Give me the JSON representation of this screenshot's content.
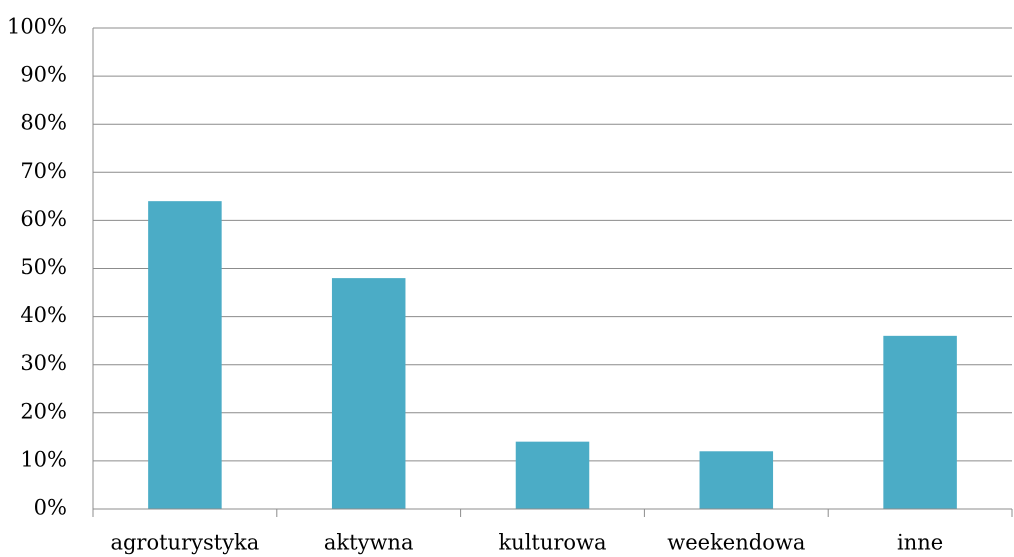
{
  "chart_data": {
    "type": "bar",
    "categories": [
      "agroturystyka",
      "aktywna",
      "kulturowa",
      "weekendowa",
      "inne"
    ],
    "values": [
      64,
      48,
      14,
      12,
      36
    ],
    "color": "#4bacc6",
    "ylim": [
      0,
      100
    ],
    "yticks": [
      {
        "value": 0,
        "label": "0%"
      },
      {
        "value": 10,
        "label": "10%"
      },
      {
        "value": 20,
        "label": "20%"
      },
      {
        "value": 30,
        "label": "30%"
      },
      {
        "value": 40,
        "label": "40%"
      },
      {
        "value": 50,
        "label": "50%"
      },
      {
        "value": 60,
        "label": "60%"
      },
      {
        "value": 70,
        "label": "70%"
      },
      {
        "value": 80,
        "label": "80%"
      },
      {
        "value": 90,
        "label": "90%"
      },
      {
        "value": 100,
        "label": "100%"
      }
    ],
    "grid": true
  }
}
